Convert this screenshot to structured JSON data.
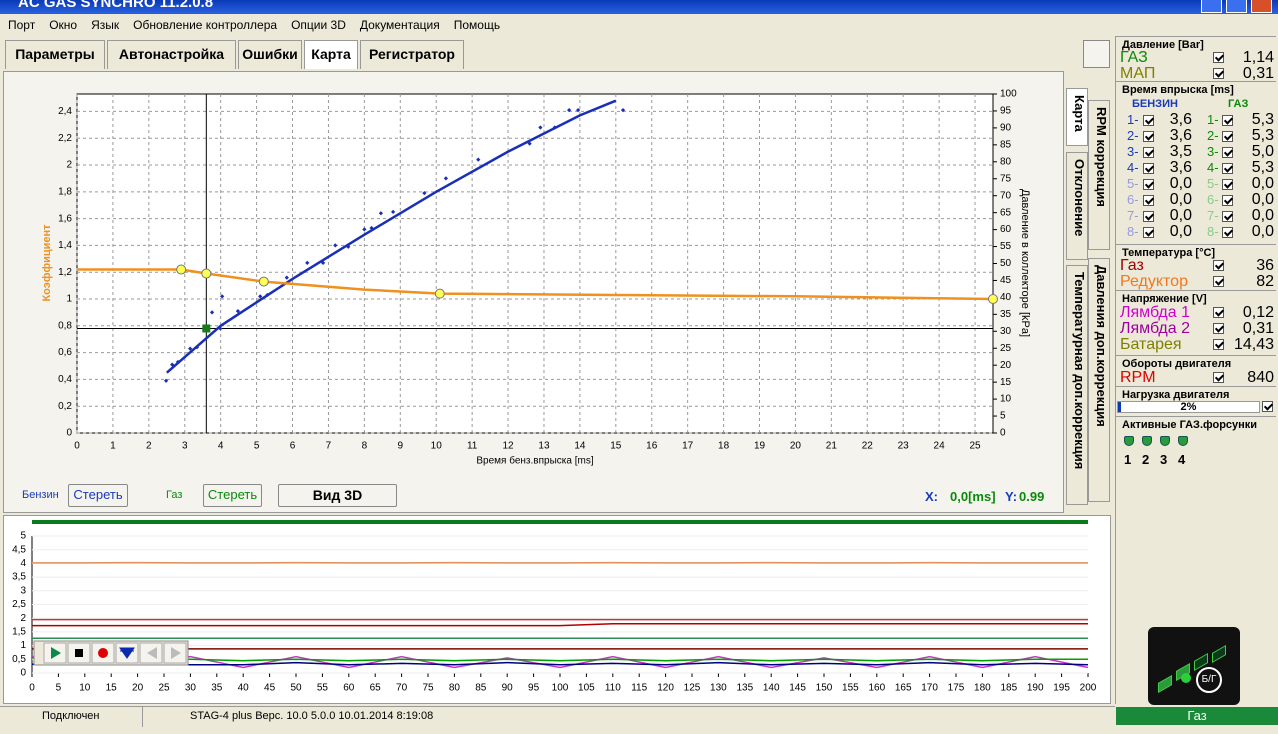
{
  "window": {
    "title": "AC GAS SYNCHRO  11.2.0.8"
  },
  "menu": [
    "Порт",
    "Окно",
    "Язык",
    "Обновление контроллера",
    "Опции 3D",
    "Документация",
    "Помощь"
  ],
  "tabs": [
    "Параметры",
    "Автонастройка",
    "Ошибки",
    "Карта",
    "Регистратор"
  ],
  "side_tabs": [
    "Карта",
    "RPM коррекция",
    "Отклонение",
    "Давления доп.коррекция",
    "Температурная доп.коррекция"
  ],
  "chart_data": [
    {
      "type": "scatter",
      "x_label": "Время бенз.впрыска [ms]",
      "y_label": "Коэффициент",
      "y2_label": "Давление в коллекторе [kPa]",
      "xlim": [
        0,
        25.5
      ],
      "xticks": [
        0,
        1,
        2,
        3,
        4,
        5,
        6,
        7,
        8,
        9,
        10,
        11,
        12,
        13,
        14,
        15,
        16,
        17,
        18,
        19,
        20,
        21,
        22,
        23,
        24,
        25
      ],
      "ylim": [
        0,
        2.53
      ],
      "yticks": [
        0,
        {
          "value": 0.2,
          "label": "0,2"
        },
        {
          "value": 0.4,
          "label": "0,4"
        },
        {
          "value": 0.6,
          "label": "0,6"
        },
        {
          "value": 0.8,
          "label": "0,8"
        },
        1,
        {
          "value": 1.2,
          "label": "1,2"
        },
        {
          "value": 1.4,
          "label": "1,4"
        },
        {
          "value": 1.6,
          "label": "1,6"
        },
        {
          "value": 1.8,
          "label": "1,8"
        },
        2,
        {
          "value": 2.2,
          "label": "2,2"
        },
        {
          "value": 2.4,
          "label": "2,4"
        }
      ],
      "y2lim": [
        0,
        100
      ],
      "y2ticks": [
        0,
        5,
        10,
        15,
        20,
        25,
        30,
        35,
        40,
        45,
        50,
        55,
        60,
        65,
        70,
        75,
        80,
        85,
        90,
        95,
        100
      ],
      "grid": true,
      "series": [
        {
          "style": "points",
          "color": "#1a2fb8",
          "x": [
            2.48,
            2.65,
            2.81,
            3.15,
            3.34,
            3.76,
            4.04,
            3.99,
            4.48,
            5.1,
            5.3,
            5.84,
            6.41,
            6.85,
            7.19,
            7.55,
            8.0,
            8.2,
            8.46,
            8.8,
            9.67,
            10.27,
            11.17,
            12.6,
            12.9,
            13.3,
            13.7,
            13.95,
            15.2
          ],
          "values": [
            0.39,
            0.51,
            0.53,
            0.63,
            0.64,
            0.9,
            1.02,
            0.78,
            0.91,
            1.02,
            1.03,
            1.16,
            1.27,
            1.27,
            1.4,
            1.39,
            1.52,
            1.53,
            1.64,
            1.65,
            1.79,
            1.9,
            2.04,
            2.16,
            2.28,
            2.28,
            2.41,
            2.41,
            2.41
          ]
        },
        {
          "style": "line",
          "color": "#1a2fb8",
          "x": [
            2.5,
            4,
            6,
            8,
            10,
            12,
            14,
            15
          ],
          "values": [
            0.45,
            0.8,
            1.15,
            1.48,
            1.8,
            2.1,
            2.37,
            2.48
          ]
        },
        {
          "style": "line",
          "color": "#f0901e",
          "x": [
            0,
            2.9,
            3.6,
            5.2,
            8,
            10.1,
            15,
            20,
            25.5
          ],
          "values": [
            1.22,
            1.22,
            1.19,
            1.13,
            1.07,
            1.04,
            1.03,
            1.02,
            1.0
          ]
        },
        {
          "style": "markers",
          "color": "#ffff55",
          "x": [
            2.9,
            3.6,
            5.2,
            10.1,
            25.5
          ],
          "values": [
            1.22,
            1.19,
            1.13,
            1.04,
            1.0
          ]
        }
      ],
      "cursor": {
        "x": 3.6,
        "y": 0.78,
        "color": "#1a7a1a"
      }
    },
    {
      "type": "line",
      "xlim": [
        0,
        200
      ],
      "xticks": [
        0,
        5,
        10,
        15,
        20,
        25,
        30,
        35,
        40,
        45,
        50,
        55,
        60,
        65,
        70,
        75,
        80,
        85,
        90,
        95,
        100,
        105,
        110,
        115,
        120,
        125,
        130,
        135,
        140,
        145,
        150,
        155,
        160,
        165,
        170,
        175,
        180,
        185,
        190,
        195,
        200
      ],
      "ylim": [
        0,
        5
      ],
      "yticks": [
        0,
        {
          "value": 0.5,
          "label": "0,5"
        },
        1,
        {
          "value": 1.5,
          "label": "1,5"
        },
        2,
        {
          "value": 2.5,
          "label": "2,5"
        },
        3,
        {
          "value": 3.5,
          "label": "3,5"
        },
        4,
        {
          "value": 4.5,
          "label": "4,5"
        },
        5
      ],
      "x": [
        0,
        10,
        20,
        30,
        40,
        50,
        60,
        70,
        80,
        90,
        100,
        110,
        120,
        130,
        140,
        150,
        160,
        170,
        180,
        190,
        200
      ],
      "series": [
        {
          "color": "#e0905a",
          "values": [
            4.02,
            4.02,
            4.03,
            4.02,
            4.02,
            4.03,
            4.02,
            4.02,
            4.03,
            4.02,
            4.02,
            4.03,
            4.02,
            4.02,
            4.03,
            4.02,
            4.02,
            4.03,
            4.02,
            4.02,
            4.02
          ]
        },
        {
          "color": "#cc3333",
          "values": [
            1.95,
            1.95,
            1.95,
            1.95,
            1.95,
            1.95,
            1.95,
            1.95,
            1.95,
            1.95,
            1.95,
            1.95,
            1.95,
            1.95,
            1.95,
            1.95,
            1.95,
            1.95,
            1.95,
            1.95,
            1.95
          ]
        },
        {
          "color": "#b00000",
          "values": [
            1.73,
            1.73,
            1.73,
            1.73,
            1.73,
            1.73,
            1.73,
            1.73,
            1.73,
            1.73,
            1.73,
            1.8,
            1.8,
            1.8,
            1.8,
            1.8,
            1.8,
            1.8,
            1.8,
            1.8,
            1.8
          ]
        },
        {
          "color": "#2e8b57",
          "values": [
            1.27,
            1.27,
            1.27,
            1.27,
            1.27,
            1.27,
            1.27,
            1.27,
            1.27,
            1.27,
            1.27,
            1.27,
            1.27,
            1.27,
            1.27,
            1.27,
            1.27,
            1.27,
            1.27,
            1.27,
            1.27
          ]
        },
        {
          "color": "#800000",
          "values": [
            0.88,
            0.88,
            0.88,
            0.88,
            0.88,
            0.88,
            0.88,
            0.88,
            0.88,
            0.88,
            0.88,
            0.88,
            0.88,
            0.88,
            0.88,
            0.88,
            0.88,
            0.88,
            0.88,
            0.88,
            0.88
          ]
        },
        {
          "color": "#cc33cc",
          "values": [
            0.6,
            0.55,
            0.5,
            0.6,
            0.2,
            0.6,
            0.2,
            0.6,
            0.2,
            0.55,
            0.2,
            0.6,
            0.2,
            0.6,
            0.2,
            0.55,
            0.2,
            0.6,
            0.2,
            0.6,
            0.2
          ]
        },
        {
          "color": "#00a000",
          "values": [
            0.55,
            0.55,
            0.5,
            0.5,
            0.45,
            0.5,
            0.45,
            0.5,
            0.45,
            0.5,
            0.45,
            0.5,
            0.45,
            0.5,
            0.45,
            0.5,
            0.45,
            0.5,
            0.45,
            0.5,
            0.5
          ]
        },
        {
          "color": "#000080",
          "values": [
            0.32,
            0.3,
            0.35,
            0.3,
            0.3,
            0.38,
            0.3,
            0.35,
            0.3,
            0.38,
            0.3,
            0.35,
            0.3,
            0.38,
            0.3,
            0.35,
            0.3,
            0.38,
            0.3,
            0.35,
            0.3
          ]
        }
      ]
    }
  ],
  "controls": {
    "petrol_label": "Бензин",
    "petrol_clear": "Стереть",
    "gas_label": "Газ",
    "gas_clear": "Стереть",
    "view3d": "Вид 3D",
    "cursor_x_label": "X:",
    "cursor_x": "0,0[ms]",
    "cursor_y_label": "Y:",
    "cursor_y": "0.99"
  },
  "panel": {
    "pressure": {
      "title": "Давление [Bar]",
      "rows": [
        {
          "name": "ГАЗ",
          "value": "1,14",
          "color": "#0a8a0a"
        },
        {
          "name": "МАП",
          "value": "0,31",
          "color": "#808000"
        }
      ]
    },
    "injection": {
      "title": "Время впрыска [ms]",
      "petrol_header": "БЕНЗИН",
      "gas_header": "ГАЗ",
      "petrol_channels": [
        "1-",
        "2-",
        "3-",
        "4-",
        "5-",
        "6-",
        "7-",
        "8-"
      ],
      "gas_channels": [
        "1-",
        "2-",
        "3-",
        "4-",
        "5-",
        "6-",
        "7-",
        "8-"
      ],
      "petrol": [
        "3,6",
        "3,6",
        "3,5",
        "3,6",
        "0,0",
        "0,0",
        "0,0",
        "0,0"
      ],
      "gas": [
        "5,3",
        "5,3",
        "5,0",
        "5,3",
        "0,0",
        "0,0",
        "0,0",
        "0,0"
      ]
    },
    "temperature": {
      "title": "Температура  [°C]",
      "rows": [
        {
          "name": "Газ",
          "value": "36",
          "color": "#a00000"
        },
        {
          "name": "Редуктор",
          "value": "82",
          "color": "#f07820"
        }
      ]
    },
    "voltage": {
      "title": "Напряжение [V]",
      "rows": [
        {
          "name": "Лямбда 1",
          "value": "0,12",
          "color": "#d000d0"
        },
        {
          "name": "Лямбда 2",
          "value": "0,31",
          "color": "#a000a0"
        },
        {
          "name": "Батарея",
          "value": "14,43",
          "color": "#808000"
        }
      ]
    },
    "rpm": {
      "title": "Обороты двигателя",
      "rows": [
        {
          "name": "RPM",
          "value": "840",
          "color": "#e00000"
        }
      ]
    },
    "load": {
      "title": "Нагрузка двигателя",
      "value": "2%"
    },
    "injectors": {
      "title": "Активные ГАЗ.форсунки",
      "labels": [
        "1",
        "2",
        "3",
        "4"
      ]
    },
    "indicator": "Б/Г"
  },
  "status": {
    "connection": "Подключен",
    "device": "STAG-4 plus  Верс. 10.0  5.0.0   10.01.2014 8:19:08",
    "mode": "Газ"
  }
}
